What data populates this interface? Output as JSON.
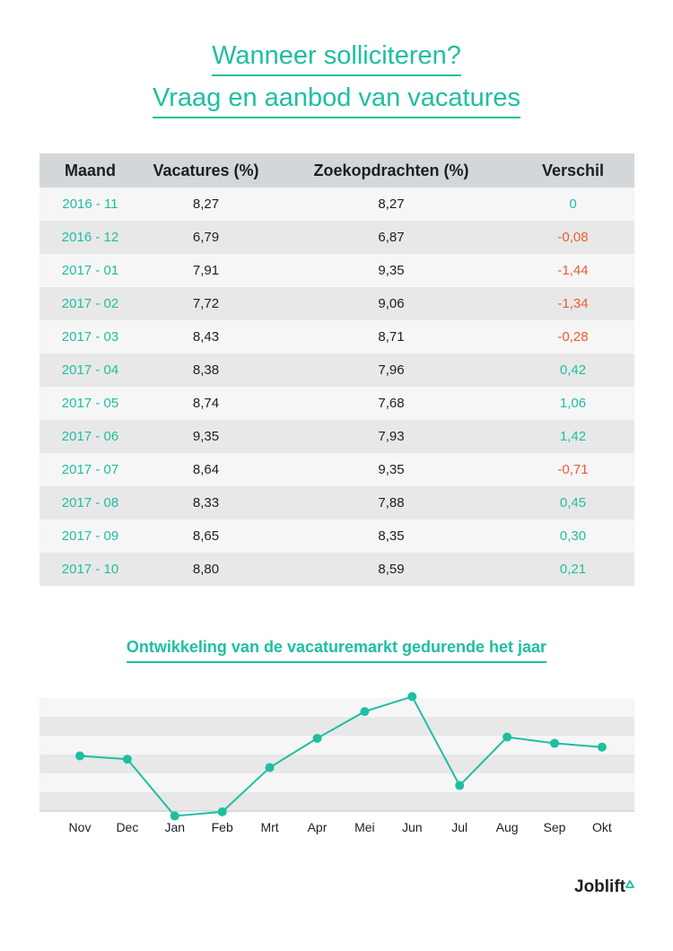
{
  "header": {
    "title_line1": "Wanneer solliciteren?",
    "title_line2": "Vraag en aanbod van vacatures"
  },
  "table": {
    "columns": [
      "Maand",
      "Vacatures (%)",
      "Zoekopdrachten (%)",
      "Verschil"
    ],
    "rows": [
      {
        "maand": "2016 - 11",
        "vacatures": "8,27",
        "zoek": "8,27",
        "verschil": "0",
        "sign": "pos"
      },
      {
        "maand": "2016 - 12",
        "vacatures": "6,79",
        "zoek": "6,87",
        "verschil": "-0,08",
        "sign": "neg"
      },
      {
        "maand": "2017 - 01",
        "vacatures": "7,91",
        "zoek": "9,35",
        "verschil": "-1,44",
        "sign": "neg"
      },
      {
        "maand": "2017 - 02",
        "vacatures": "7,72",
        "zoek": "9,06",
        "verschil": "-1,34",
        "sign": "neg"
      },
      {
        "maand": "2017 - 03",
        "vacatures": "8,43",
        "zoek": "8,71",
        "verschil": "-0,28",
        "sign": "neg"
      },
      {
        "maand": "2017 - 04",
        "vacatures": "8,38",
        "zoek": "7,96",
        "verschil": "0,42",
        "sign": "pos"
      },
      {
        "maand": "2017 - 05",
        "vacatures": "8,74",
        "zoek": "7,68",
        "verschil": "1,06",
        "sign": "pos"
      },
      {
        "maand": "2017 - 06",
        "vacatures": "9,35",
        "zoek": "7,93",
        "verschil": "1,42",
        "sign": "pos"
      },
      {
        "maand": "2017 - 07",
        "vacatures": "8,64",
        "zoek": "9,35",
        "verschil": "-0,71",
        "sign": "neg"
      },
      {
        "maand": "2017 - 08",
        "vacatures": "8,33",
        "zoek": "7,88",
        "verschil": "0,45",
        "sign": "pos"
      },
      {
        "maand": "2017 - 09",
        "vacatures": "8,65",
        "zoek": "8,35",
        "verschil": "0,30",
        "sign": "pos"
      },
      {
        "maand": "2017 - 10",
        "vacatures": "8,80",
        "zoek": "8,59",
        "verschil": "0,21",
        "sign": "pos"
      }
    ]
  },
  "colors": {
    "accent": "#1ebfa0",
    "negative": "#ee5a30",
    "header_bg": "#d3d7da",
    "row_light": "#f6f6f6",
    "row_dark": "#e8e8e8"
  },
  "chart_data": {
    "type": "line",
    "title": "Ontwikkeling van de vacaturemarkt gedurende het jaar",
    "xlabel": "",
    "ylabel": "",
    "categories": [
      "Nov",
      "Dec",
      "Jan",
      "Feb",
      "Mrt",
      "Apr",
      "Mei",
      "Jun",
      "Jul",
      "Aug",
      "Sep",
      "Okt"
    ],
    "series": [
      {
        "values": [
          0,
          -0.08,
          -1.44,
          -1.34,
          -0.28,
          0.42,
          1.06,
          1.42,
          -0.71,
          0.45,
          0.3,
          0.21
        ]
      }
    ],
    "ylim": [
      -1.6,
      1.6
    ],
    "grid": true,
    "line_color": "#1ebfa0"
  },
  "brand": {
    "name": "Joblift"
  }
}
